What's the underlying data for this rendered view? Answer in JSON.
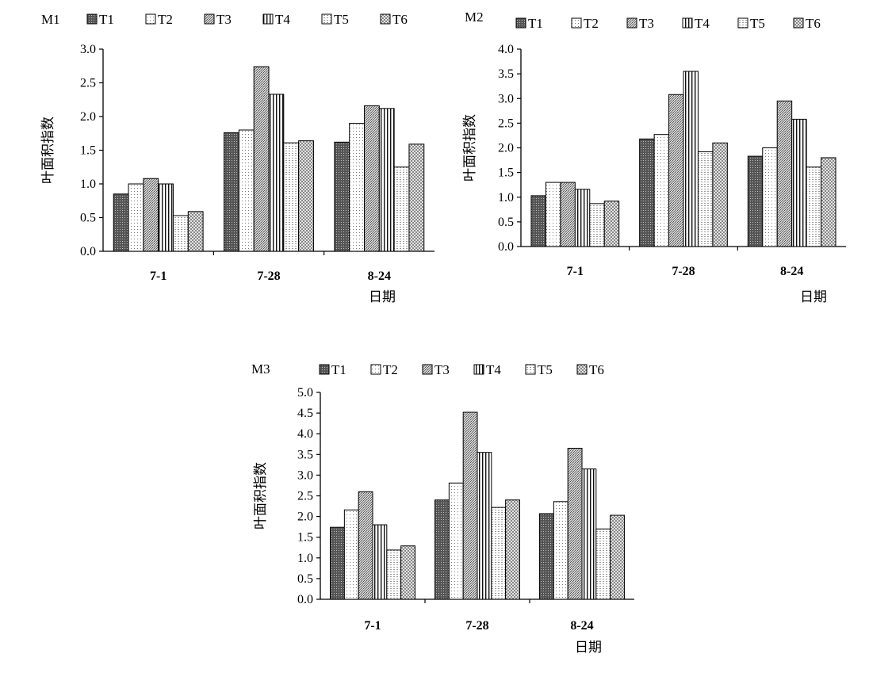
{
  "chart_data": [
    {
      "type": "bar",
      "title": "M1",
      "categories": [
        "7-1",
        "7-28",
        "8-24"
      ],
      "ylabel": "叶面积指数",
      "xlabel": "日期",
      "ylim": [
        0,
        3.0
      ],
      "yticks": [
        "0.0",
        "0.5",
        "1.0",
        "1.5",
        "2.0",
        "2.5",
        "3.0"
      ],
      "legend_position": "top",
      "series": [
        {
          "name": "T1",
          "values": [
            0.85,
            1.76,
            1.62
          ]
        },
        {
          "name": "T2",
          "values": [
            1.0,
            1.8,
            1.9
          ]
        },
        {
          "name": "T3",
          "values": [
            1.08,
            2.74,
            2.16
          ]
        },
        {
          "name": "T4",
          "values": [
            1.0,
            2.33,
            2.12
          ]
        },
        {
          "name": "T5",
          "values": [
            0.53,
            1.61,
            1.25
          ]
        },
        {
          "name": "T6",
          "values": [
            0.59,
            1.64,
            1.59
          ]
        }
      ]
    },
    {
      "type": "bar",
      "title": "M2",
      "categories": [
        "7-1",
        "7-28",
        "8-24"
      ],
      "ylabel": "叶面积指数",
      "xlabel": "日期",
      "ylim": [
        0,
        4.0
      ],
      "yticks": [
        "0.0",
        "0.5",
        "1.0",
        "1.5",
        "2.0",
        "2.5",
        "3.0",
        "3.5",
        "4.0"
      ],
      "legend_position": "top",
      "series": [
        {
          "name": "T1",
          "values": [
            1.03,
            2.18,
            1.83
          ]
        },
        {
          "name": "T2",
          "values": [
            1.3,
            2.27,
            2.0
          ]
        },
        {
          "name": "T3",
          "values": [
            1.3,
            3.08,
            2.95
          ]
        },
        {
          "name": "T4",
          "values": [
            1.16,
            3.55,
            2.58
          ]
        },
        {
          "name": "T5",
          "values": [
            0.87,
            1.92,
            1.61
          ]
        },
        {
          "name": "T6",
          "values": [
            0.92,
            2.1,
            1.8
          ]
        }
      ]
    },
    {
      "type": "bar",
      "title": "M3",
      "categories": [
        "7-1",
        "7-28",
        "8-24"
      ],
      "ylabel": "叶面积指数",
      "xlabel": "日期",
      "ylim": [
        0,
        5.0
      ],
      "yticks": [
        "0.0",
        "0.5",
        "1.0",
        "1.5",
        "2.0",
        "2.5",
        "3.0",
        "3.5",
        "4.0",
        "4.5",
        "5.0"
      ],
      "legend_position": "top",
      "series": [
        {
          "name": "T1",
          "values": [
            1.74,
            2.4,
            2.07
          ]
        },
        {
          "name": "T2",
          "values": [
            2.16,
            2.81,
            2.36
          ]
        },
        {
          "name": "T3",
          "values": [
            2.6,
            4.52,
            3.65
          ]
        },
        {
          "name": "T4",
          "values": [
            1.8,
            3.55,
            3.15
          ]
        },
        {
          "name": "T5",
          "values": [
            1.19,
            2.22,
            1.7
          ]
        },
        {
          "name": "T6",
          "values": [
            1.29,
            2.4,
            2.03
          ]
        }
      ]
    }
  ]
}
